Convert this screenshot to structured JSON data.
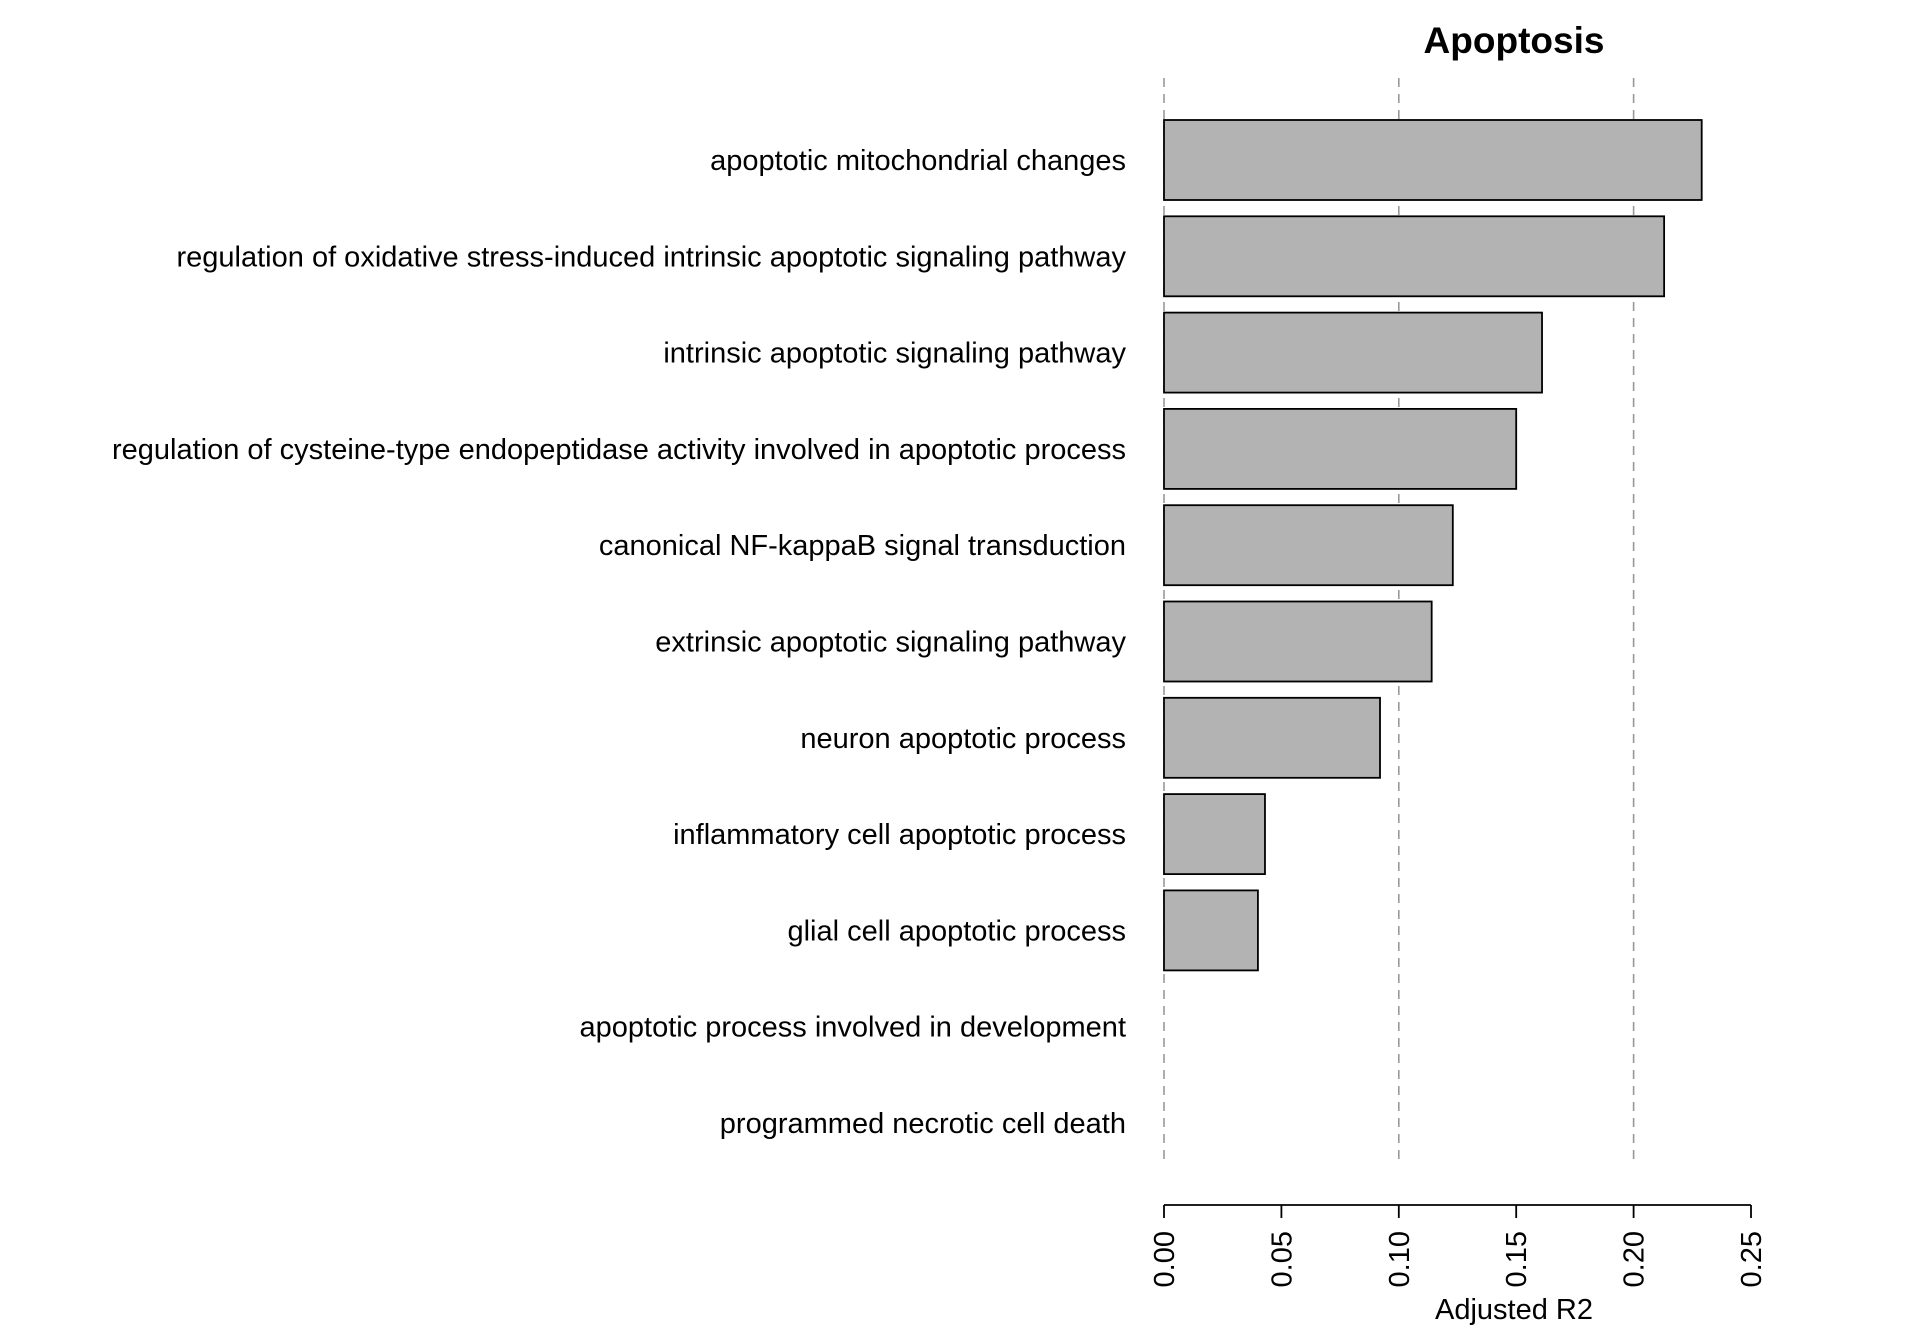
{
  "chart_data": {
    "type": "bar",
    "orientation": "horizontal",
    "title": "Apoptosis",
    "xlabel": "Adjusted R2",
    "ylabel": "",
    "categories": [
      "apoptotic mitochondrial changes",
      "regulation of oxidative stress-induced intrinsic apoptotic signaling pathway",
      "intrinsic apoptotic signaling pathway",
      "regulation of cysteine-type endopeptidase activity involved in apoptotic process",
      "canonical NF-kappaB signal transduction",
      "extrinsic apoptotic signaling pathway",
      "neuron apoptotic process",
      "inflammatory cell apoptotic process",
      "glial cell apoptotic process",
      "apoptotic process involved in development",
      "programmed necrotic cell death"
    ],
    "values": [
      0.229,
      0.213,
      0.161,
      0.15,
      0.123,
      0.114,
      0.092,
      0.043,
      0.04,
      0.0,
      0.0
    ],
    "xlim": [
      0,
      0.25
    ],
    "xticks": [
      0.0,
      0.05,
      0.1,
      0.15,
      0.2,
      0.25
    ],
    "xtick_labels": [
      "0.00",
      "0.05",
      "0.10",
      "0.15",
      "0.20",
      "0.25"
    ],
    "reference_lines": [
      0,
      0.1,
      0.2
    ],
    "grid": false,
    "bar_color": "#b3b3b3",
    "bar_edge_color": "#000000",
    "reference_line_color": "#999999"
  }
}
